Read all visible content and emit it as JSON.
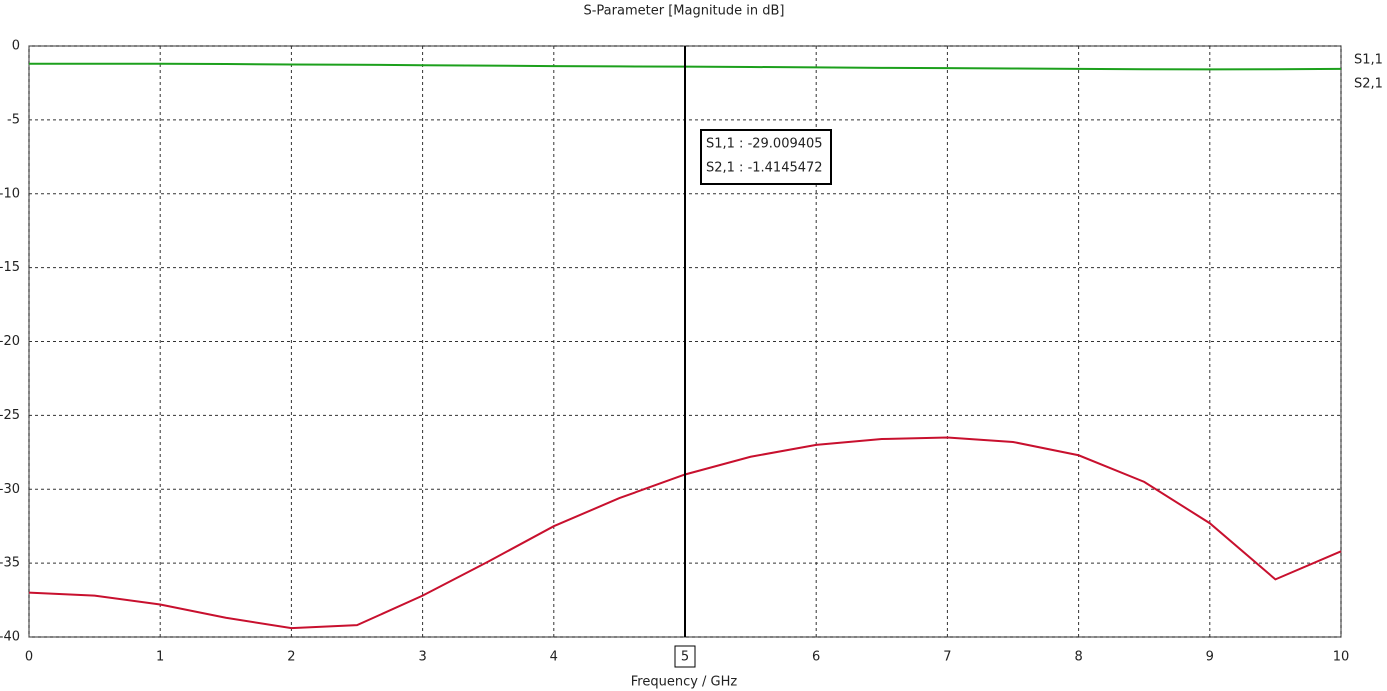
{
  "chart_data": {
    "type": "line",
    "title": "S-Parameter [Magnitude in dB]",
    "x_label": "Frequency / GHz",
    "x": [
      0,
      0.5,
      1,
      1.5,
      2,
      2.5,
      3,
      3.5,
      4,
      4.5,
      5,
      5.5,
      6,
      6.5,
      7,
      7.5,
      8,
      8.5,
      9,
      9.5,
      10
    ],
    "series": [
      {
        "name": "S1,1",
        "color": "#c8102e",
        "values": [
          -37.0,
          -37.2,
          -37.8,
          -38.7,
          -39.4,
          -39.2,
          -37.2,
          -34.9,
          -32.5,
          -30.6,
          -29.0,
          -27.8,
          -27.0,
          -26.6,
          -26.5,
          -26.8,
          -27.7,
          -29.5,
          -32.3,
          -36.1,
          -34.2
        ]
      },
      {
        "name": "S2,1",
        "color": "#1ca01c",
        "values": [
          -1.2,
          -1.2,
          -1.2,
          -1.22,
          -1.25,
          -1.27,
          -1.3,
          -1.33,
          -1.36,
          -1.38,
          -1.4,
          -1.42,
          -1.45,
          -1.48,
          -1.5,
          -1.52,
          -1.55,
          -1.57,
          -1.58,
          -1.57,
          -1.55
        ]
      }
    ],
    "xlim": [
      0,
      10
    ],
    "xticks": [
      0,
      1,
      2,
      3,
      4,
      5,
      6,
      7,
      8,
      9,
      10
    ],
    "ylim": [
      -40,
      0
    ],
    "yticks": [
      0,
      -5,
      -10,
      -15,
      -20,
      -25,
      -30,
      -35,
      -40
    ],
    "grid": true,
    "legend": "right",
    "marker": {
      "x": 5,
      "labels": [
        "S1,1 : -29.009405",
        "S2,1 : -1.4145472"
      ]
    }
  }
}
